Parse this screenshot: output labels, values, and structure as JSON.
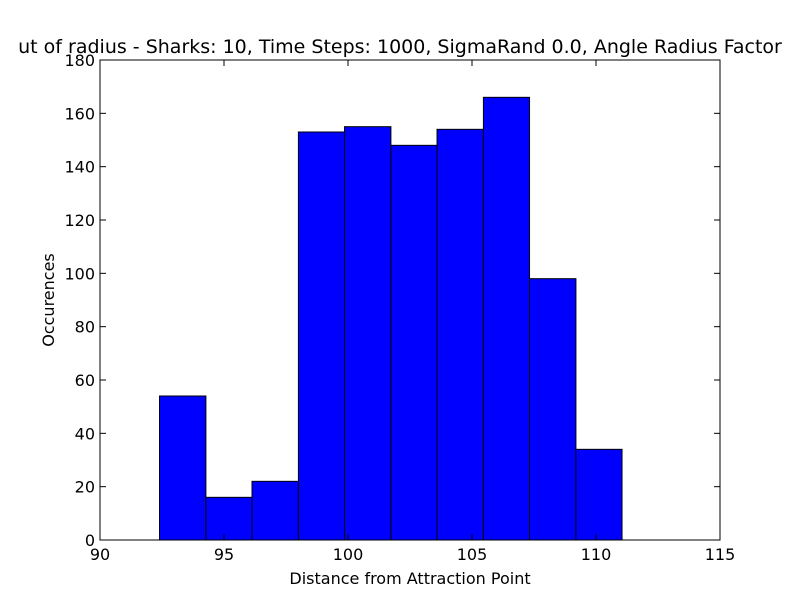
{
  "chart_data": {
    "type": "bar",
    "title": "ut of radius - Sharks: 10, Time Steps: 1000, SigmaRand 0.0, Angle Radius Factor",
    "xlabel": "Distance from Attraction Point",
    "ylabel": "Occurences",
    "xlim": [
      90,
      115
    ],
    "ylim": [
      0,
      180
    ],
    "xticks": [
      90,
      95,
      100,
      105,
      110,
      115
    ],
    "yticks": [
      0,
      20,
      40,
      60,
      80,
      100,
      120,
      140,
      160,
      180
    ],
    "bin_edges": [
      92.4,
      94.27,
      96.13,
      98.0,
      99.86,
      101.73,
      103.59,
      105.46,
      107.32,
      109.19,
      111.05
    ],
    "values": [
      54,
      16,
      22,
      153,
      155,
      148,
      154,
      166,
      98,
      34
    ],
    "bar_color": "#0000ff",
    "edge_color": "#000000",
    "grid": false,
    "legend": "none"
  }
}
